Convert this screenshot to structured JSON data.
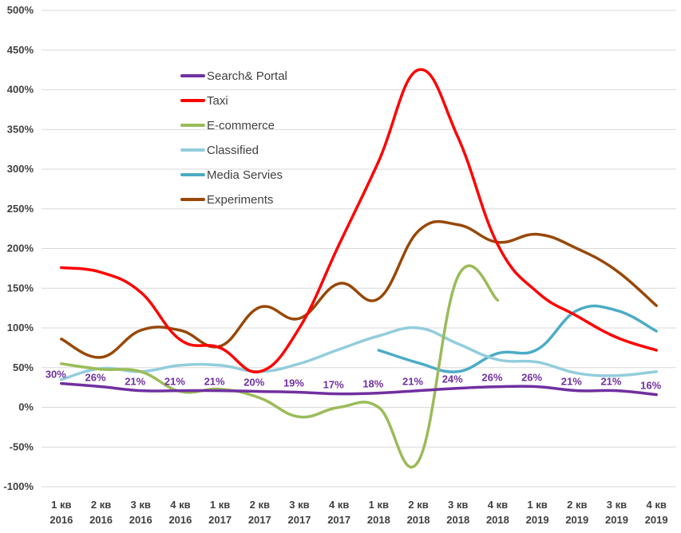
{
  "chart_data": {
    "type": "line",
    "title": "",
    "xlabel": "",
    "ylabel": "",
    "ylim": [
      -100,
      500
    ],
    "ytick_step": 50,
    "ytick_format": "percent",
    "grid": "horizontal",
    "legend_position": "top-left",
    "categories": [
      [
        "1 кв",
        "2016"
      ],
      [
        "2 кв",
        "2016"
      ],
      [
        "3 кв",
        "2016"
      ],
      [
        "4 кв",
        "2016"
      ],
      [
        "1 кв",
        "2017"
      ],
      [
        "2 кв",
        "2017"
      ],
      [
        "3 кв",
        "2017"
      ],
      [
        "4 кв",
        "2017"
      ],
      [
        "1 кв",
        "2018"
      ],
      [
        "2 кв",
        "2018"
      ],
      [
        "3 кв",
        "2018"
      ],
      [
        "4 кв",
        "2018"
      ],
      [
        "1 кв",
        "2019"
      ],
      [
        "2 кв",
        "2019"
      ],
      [
        "3 кв",
        "2019"
      ],
      [
        "4 кв",
        "2019"
      ]
    ],
    "series": [
      {
        "name": "Search& Portal",
        "color": "#7030a0",
        "values": [
          30,
          26,
          21,
          21,
          21,
          20,
          19,
          17,
          18,
          21,
          24,
          26,
          26,
          21,
          21,
          16
        ],
        "data_labels": [
          "30%",
          "26%",
          "21%",
          "21%",
          "21%",
          "20%",
          "19%",
          "17%",
          "18%",
          "21%",
          "24%",
          "26%",
          "26%",
          "21%",
          "21%",
          "16%"
        ]
      },
      {
        "name": "Taxi",
        "color": "#ff0000",
        "values": [
          176,
          170,
          145,
          85,
          75,
          45,
          100,
          205,
          310,
          425,
          340,
          205,
          145,
          115,
          88,
          72
        ]
      },
      {
        "name": "E-commerce",
        "color": "#9bbb59",
        "values": [
          55,
          48,
          45,
          20,
          23,
          12,
          -12,
          0,
          0,
          -68,
          165,
          135,
          null,
          null,
          null,
          null
        ]
      },
      {
        "name": "Classified",
        "color": "#92cddc",
        "values": [
          35,
          49,
          45,
          53,
          53,
          45,
          55,
          73,
          90,
          100,
          80,
          60,
          57,
          43,
          40,
          45
        ]
      },
      {
        "name": "Media Servies",
        "color": "#4bacc6",
        "values": [
          null,
          null,
          null,
          null,
          null,
          null,
          null,
          null,
          72,
          56,
          45,
          68,
          73,
          122,
          122,
          96
        ]
      },
      {
        "name": "Experiments",
        "color": "#984807",
        "values": [
          86,
          63,
          97,
          97,
          77,
          126,
          112,
          156,
          137,
          222,
          230,
          208,
          218,
          200,
          172,
          128
        ]
      }
    ]
  }
}
